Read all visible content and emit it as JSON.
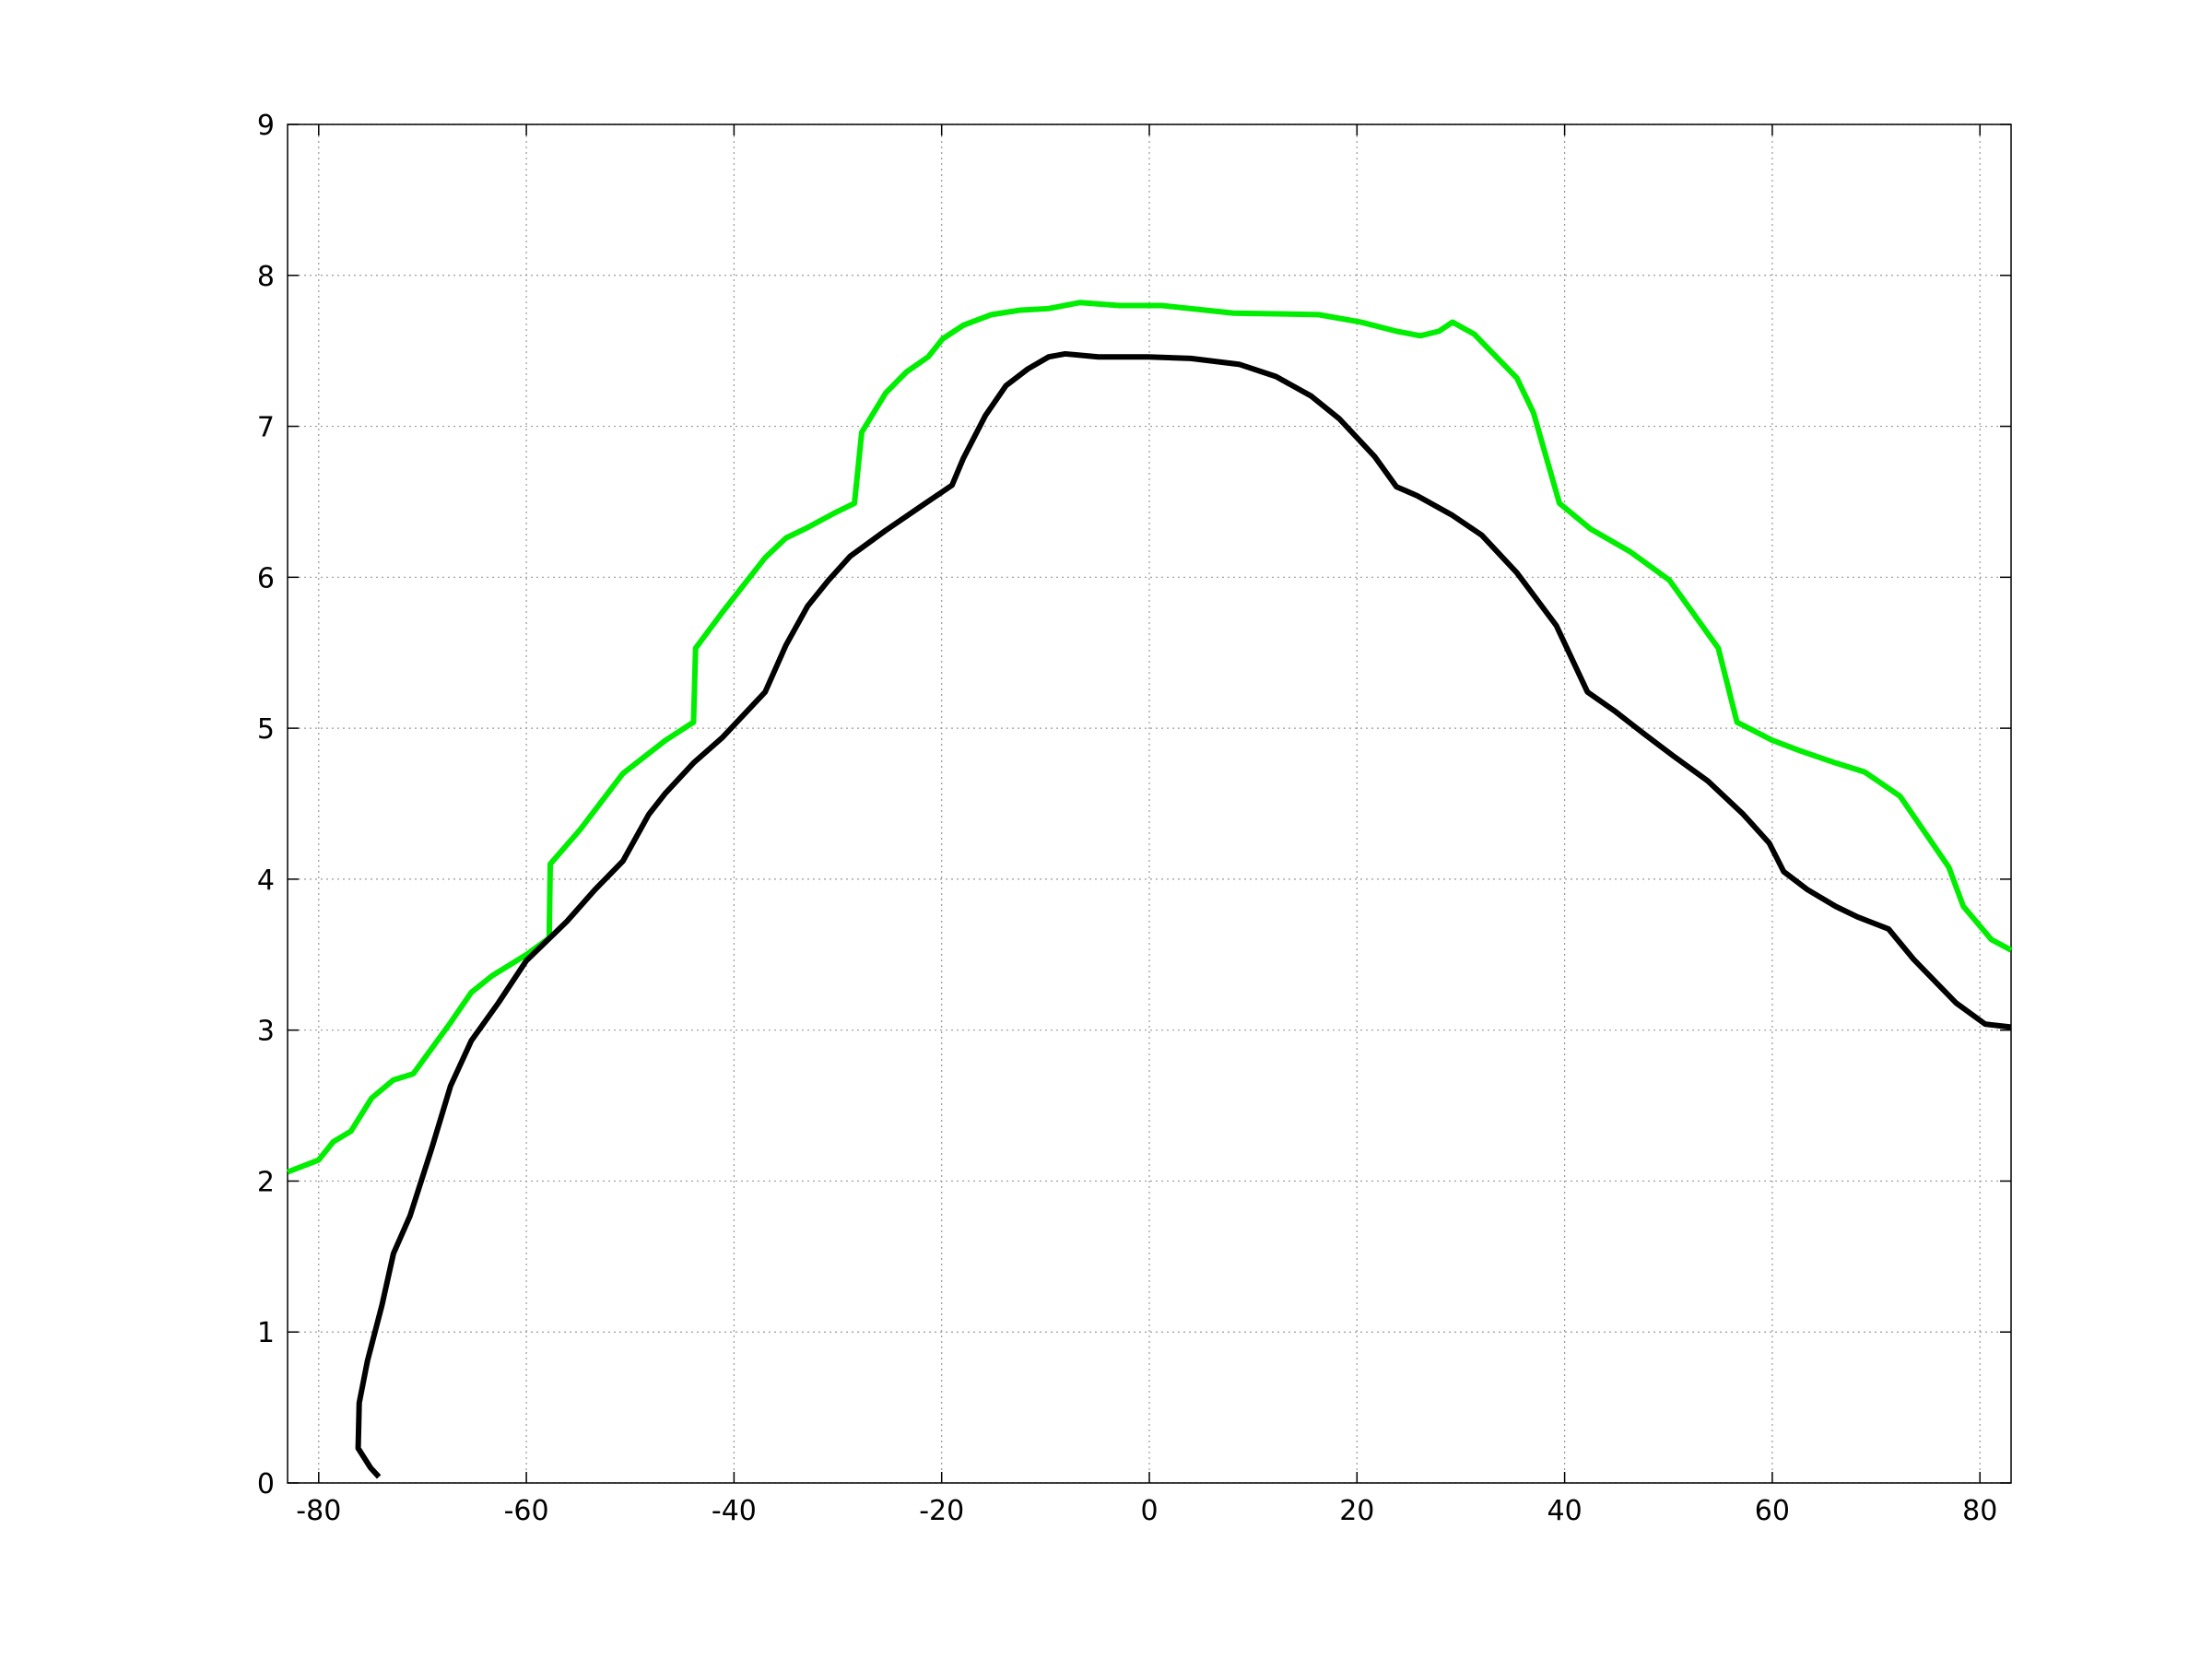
{
  "chart_data": {
    "type": "line",
    "xlim": [
      -83,
      83
    ],
    "xticks": [
      -80,
      -60,
      -40,
      -20,
      0,
      20,
      40,
      60,
      80
    ],
    "ylim": [
      0,
      9
    ],
    "yticks": [
      0,
      1,
      2,
      3,
      4,
      5,
      6,
      7,
      8,
      9
    ],
    "grid": true,
    "series": [
      {
        "color": "#00ee00",
        "x": [
          -83,
          -80,
          -78.6,
          -76.9,
          -74.9,
          -72.8,
          -70.9,
          -67.3,
          -65.3,
          -63.3,
          -60,
          -57.8,
          -57.7,
          -54.8,
          -50.7,
          -46.6,
          -43.9,
          -43.7,
          -41.1,
          -37,
          -35,
          -32.9,
          -30.2,
          -28.4,
          -27.7,
          -25.4,
          -23.4,
          -21.3,
          -19.9,
          -17.9,
          -15.2,
          -12.4,
          -9.7,
          -6.7,
          -2.9,
          1.2,
          8.1,
          16.3,
          20.4,
          23.8,
          26.1,
          27.9,
          29.2,
          31.3,
          35.4,
          37,
          39.5,
          42.5,
          46.3,
          50.1,
          54.8,
          56.6,
          60,
          62.7,
          66.1,
          68.9,
          72.3,
          77,
          78.4,
          80,
          81.1,
          83
        ],
        "values": [
          2.06,
          2.14,
          2.26,
          2.33,
          2.55,
          2.67,
          2.71,
          3.05,
          3.25,
          3.36,
          3.5,
          3.61,
          4.1,
          4.33,
          4.7,
          4.92,
          5.04,
          5.53,
          5.77,
          6.13,
          6.26,
          6.33,
          6.43,
          6.49,
          6.96,
          7.22,
          7.36,
          7.46,
          7.58,
          7.67,
          7.74,
          7.77,
          7.78,
          7.82,
          7.8,
          7.8,
          7.75,
          7.74,
          7.69,
          7.63,
          7.6,
          7.63,
          7.69,
          7.61,
          7.32,
          7.09,
          6.49,
          6.32,
          6.17,
          5.98,
          5.53,
          5.04,
          4.92,
          4.85,
          4.77,
          4.71,
          4.55,
          4.08,
          3.82,
          3.69,
          3.6,
          3.53
        ]
      },
      {
        "color": "#000000",
        "x": [
          -74.2,
          -75,
          -76.2,
          -76.1,
          -75.3,
          -73.9,
          -72.8,
          -71.2,
          -69.1,
          -67.3,
          -65.3,
          -62.7,
          -60,
          -56.1,
          -53.4,
          -50.7,
          -48.2,
          -46.6,
          -43.9,
          -41.1,
          -37,
          -35,
          -32.9,
          -30.9,
          -28.8,
          -25.4,
          -22,
          -19,
          -17.9,
          -15.8,
          -13.8,
          -11.7,
          -9.7,
          -8.1,
          -4.9,
          -0.1,
          4,
          8.7,
          12.2,
          15.6,
          18.3,
          21.7,
          23.8,
          25.8,
          29.2,
          32,
          35.4,
          39.2,
          42.2,
          44.9,
          47.7,
          50.4,
          53.8,
          57.2,
          59.7,
          61.1,
          63.4,
          66.1,
          68.2,
          71.2,
          73.6,
          77.7,
          80.5,
          83
        ],
        "values": [
          0.04,
          0.1,
          0.23,
          0.53,
          0.81,
          1.18,
          1.52,
          1.77,
          2.22,
          2.63,
          2.93,
          3.18,
          3.46,
          3.72,
          3.93,
          4.12,
          4.43,
          4.57,
          4.77,
          4.94,
          5.24,
          5.55,
          5.81,
          5.98,
          6.14,
          6.31,
          6.47,
          6.61,
          6.79,
          7.07,
          7.27,
          7.38,
          7.46,
          7.48,
          7.46,
          7.46,
          7.45,
          7.41,
          7.33,
          7.2,
          7.05,
          6.8,
          6.6,
          6.54,
          6.41,
          6.28,
          6.03,
          5.68,
          5.24,
          5.11,
          4.96,
          4.82,
          4.65,
          4.43,
          4.24,
          4.05,
          3.93,
          3.82,
          3.75,
          3.67,
          3.47,
          3.18,
          3.04,
          3.02
        ]
      }
    ]
  }
}
